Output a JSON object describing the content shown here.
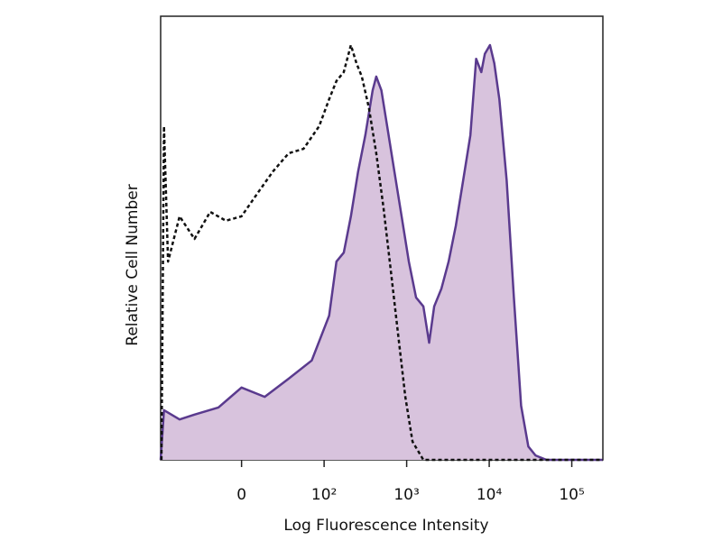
{
  "chart_data": {
    "type": "histogram-overlay",
    "x_label": "Log Fluorescence Intensity",
    "y_label": "Relative Cell Number",
    "xscale": "biexponential",
    "xlim": [
      -98,
      238000
    ],
    "ylim": [
      0,
      100
    ],
    "xticks": [
      0,
      {
        "value": 100,
        "label": "10²"
      },
      {
        "value": 1000,
        "label": "10³"
      },
      {
        "value": 10000,
        "label": "10⁴"
      },
      {
        "value": 100000,
        "label": "10⁵"
      }
    ],
    "series": [
      {
        "color": "#5a3a8e",
        "fill": "#d8c3dd",
        "style": "solid",
        "x": [
          -98,
          -94,
          -75,
          -57,
          -28,
          0,
          28,
          57,
          85,
          115,
          141,
          173,
          211,
          258,
          316,
          387,
          428,
          494,
          580,
          710,
          868,
          1062,
          1300,
          1592,
          1871,
          2154,
          2635,
          3226,
          3947,
          4831,
          5916,
          6950,
          8017,
          8855,
          10200,
          11510,
          13270,
          16250,
          19880,
          24330,
          29790,
          36390,
          49320,
          238000
        ],
        "values": [
          0,
          11.2,
          9.1,
          10.2,
          11.8,
          16.3,
          14.2,
          18.3,
          22.4,
          32.5,
          44.7,
          46.7,
          54.9,
          65,
          73.2,
          83.3,
          86.4,
          83.3,
          75.2,
          65,
          54.9,
          44.7,
          36.6,
          34.6,
          26.4,
          34.6,
          38.6,
          44.7,
          52.8,
          63,
          73.2,
          90.4,
          87.4,
          91.5,
          93.5,
          89.4,
          81.3,
          63,
          36.6,
          12.2,
          3,
          1,
          0,
          0
        ]
      },
      {
        "color": "#111111",
        "fill": "none",
        "style": "dashed",
        "x": [
          -97,
          -94,
          -89,
          -75,
          -57,
          -38,
          -19,
          0,
          19,
          38,
          57,
          75,
          94,
          115,
          141,
          173,
          211,
          247,
          286,
          349,
          428,
          524,
          642,
          786,
          962,
          1178,
          1592,
          2392,
          238000
        ],
        "values": [
          0,
          75.2,
          44.7,
          54.9,
          49.8,
          55.9,
          53.9,
          54.9,
          60,
          65,
          69.1,
          70.1,
          75.2,
          81.3,
          85.4,
          87.4,
          93.5,
          89.4,
          86.4,
          79.3,
          69.1,
          56.9,
          42.7,
          28.5,
          14.2,
          4.1,
          0,
          0,
          0
        ]
      }
    ]
  }
}
